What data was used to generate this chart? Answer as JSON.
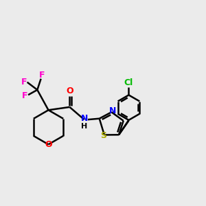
{
  "bg_color": "#ebebeb",
  "bond_color": "#000000",
  "N_color": "#0000ff",
  "O_color": "#ff0000",
  "S_color": "#aaaa00",
  "F_color": "#ff00cc",
  "Cl_color": "#00bb00",
  "line_width": 1.8,
  "figsize": [
    3.0,
    3.0
  ],
  "dpi": 100,
  "xlim": [
    0,
    10
  ],
  "ylim": [
    0,
    10
  ]
}
